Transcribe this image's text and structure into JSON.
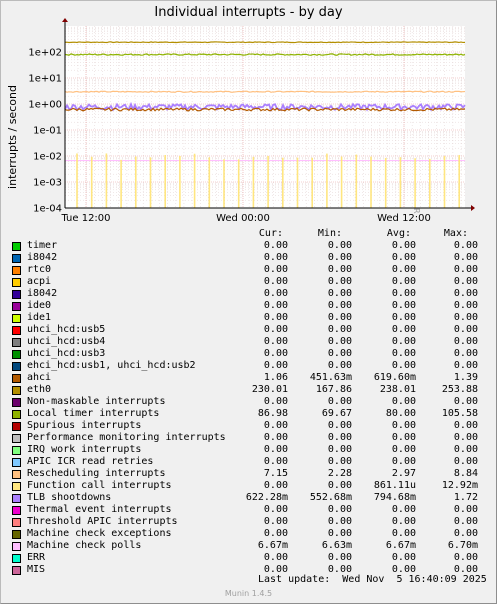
{
  "title": "Individual interrupts - by day",
  "watermark": "RRDTOOL / TOBI OETIKER",
  "footer": {
    "last_update": "Last update:  Wed Nov  5 16:40:09 2025",
    "version": "Munin 1.4.5"
  },
  "legend_headers": {
    "cur": "Cur:",
    "min": "Min:",
    "avg": "Avg:",
    "max": "Max:"
  },
  "legend": [
    {
      "name": "timer",
      "color": "#00cc00",
      "cur": "0.00",
      "min": "0.00",
      "avg": "0.00",
      "max": "0.00"
    },
    {
      "name": "i8042",
      "color": "#0066b3",
      "cur": "0.00",
      "min": "0.00",
      "avg": "0.00",
      "max": "0.00"
    },
    {
      "name": "rtc0",
      "color": "#ff8000",
      "cur": "0.00",
      "min": "0.00",
      "avg": "0.00",
      "max": "0.00"
    },
    {
      "name": "acpi",
      "color": "#ffcc00",
      "cur": "0.00",
      "min": "0.00",
      "avg": "0.00",
      "max": "0.00"
    },
    {
      "name": "i8042",
      "color": "#330099",
      "cur": "0.00",
      "min": "0.00",
      "avg": "0.00",
      "max": "0.00"
    },
    {
      "name": "ide0",
      "color": "#990099",
      "cur": "0.00",
      "min": "0.00",
      "avg": "0.00",
      "max": "0.00"
    },
    {
      "name": "ide1",
      "color": "#ccff00",
      "cur": "0.00",
      "min": "0.00",
      "avg": "0.00",
      "max": "0.00"
    },
    {
      "name": "uhci_hcd:usb5",
      "color": "#ff0000",
      "cur": "0.00",
      "min": "0.00",
      "avg": "0.00",
      "max": "0.00"
    },
    {
      "name": "uhci_hcd:usb4",
      "color": "#808080",
      "cur": "0.00",
      "min": "0.00",
      "avg": "0.00",
      "max": "0.00"
    },
    {
      "name": "uhci_hcd:usb3",
      "color": "#008f00",
      "cur": "0.00",
      "min": "0.00",
      "avg": "0.00",
      "max": "0.00"
    },
    {
      "name": "ehci_hcd:usb1, uhci_hcd:usb2",
      "color": "#00487d",
      "cur": "0.00",
      "min": "0.00",
      "avg": "0.00",
      "max": "0.00"
    },
    {
      "name": "ahci",
      "color": "#b35a00",
      "cur": "1.06",
      "min": "451.63m",
      "avg": "619.60m",
      "max": "1.39"
    },
    {
      "name": "eth0",
      "color": "#b38f00",
      "cur": "230.01",
      "min": "167.86",
      "avg": "238.01",
      "max": "253.88"
    },
    {
      "name": "Non-maskable interrupts",
      "color": "#6b006b",
      "cur": "0.00",
      "min": "0.00",
      "avg": "0.00",
      "max": "0.00"
    },
    {
      "name": "Local timer interrupts",
      "color": "#8fb300",
      "cur": "86.98",
      "min": "69.67",
      "avg": "80.00",
      "max": "105.58"
    },
    {
      "name": "Spurious interrupts",
      "color": "#b30000",
      "cur": "0.00",
      "min": "0.00",
      "avg": "0.00",
      "max": "0.00"
    },
    {
      "name": "Performance monitoring interrupts",
      "color": "#bebebe",
      "cur": "0.00",
      "min": "0.00",
      "avg": "0.00",
      "max": "0.00"
    },
    {
      "name": "IRQ work interrupts",
      "color": "#80ff80",
      "cur": "0.00",
      "min": "0.00",
      "avg": "0.00",
      "max": "0.00"
    },
    {
      "name": "APIC ICR read retries",
      "color": "#80c9ff",
      "cur": "0.00",
      "min": "0.00",
      "avg": "0.00",
      "max": "0.00"
    },
    {
      "name": "Rescheduling interrupts",
      "color": "#ffc080",
      "cur": "7.15",
      "min": "2.28",
      "avg": "2.97",
      "max": "8.84"
    },
    {
      "name": "Function call interrupts",
      "color": "#ffe680",
      "cur": "0.00",
      "min": "0.00",
      "avg": "861.11u",
      "max": "12.92m"
    },
    {
      "name": "TLB shootdowns",
      "color": "#aa80ff",
      "cur": "622.28m",
      "min": "552.68m",
      "avg": "794.68m",
      "max": "1.72"
    },
    {
      "name": "Thermal event interrupts",
      "color": "#ee00cc",
      "cur": "0.00",
      "min": "0.00",
      "avg": "0.00",
      "max": "0.00"
    },
    {
      "name": "Threshold APIC interrupts",
      "color": "#ff8080",
      "cur": "0.00",
      "min": "0.00",
      "avg": "0.00",
      "max": "0.00"
    },
    {
      "name": "Machine check exceptions",
      "color": "#666600",
      "cur": "0.00",
      "min": "0.00",
      "avg": "0.00",
      "max": "0.00"
    },
    {
      "name": "Machine check polls",
      "color": "#ffbfff",
      "cur": "6.67m",
      "min": "6.63m",
      "avg": "6.67m",
      "max": "6.70m"
    },
    {
      "name": "ERR",
      "color": "#00ffcc",
      "cur": "0.00",
      "min": "0.00",
      "avg": "0.00",
      "max": "0.00"
    },
    {
      "name": "MIS",
      "color": "#cc6699",
      "cur": "0.00",
      "min": "0.00",
      "avg": "0.00",
      "max": "0.00"
    }
  ],
  "chart_data": {
    "type": "line",
    "title": "Individual interrupts - by day",
    "ylabel": "interrupts / second",
    "xlabel": "",
    "y_scale": "log",
    "ylim": [
      0.0001,
      1000
    ],
    "y_ticks": [
      "1e-04",
      "1e-03",
      "1e-02",
      "1e-01",
      "1e+00",
      "1e+01",
      "1e+02"
    ],
    "x_ticks": [
      "Tue 12:00",
      "Wed 00:00",
      "Wed 12:00"
    ],
    "grid": true,
    "series": [
      {
        "name": "eth0",
        "color": "#b38f00",
        "level": 238,
        "jitter": 0.03,
        "style": "line"
      },
      {
        "name": "Local timer interrupts",
        "color": "#8fb300",
        "level": 80,
        "jitter": 0.06,
        "style": "line"
      },
      {
        "name": "Rescheduling interrupts",
        "color": "#ffc080",
        "level": 2.97,
        "jitter": 0.05,
        "style": "line"
      },
      {
        "name": "TLB shootdowns",
        "color": "#aa80ff",
        "level": 0.79,
        "jitter": 0.25,
        "style": "line"
      },
      {
        "name": "ahci",
        "color": "#b35a00",
        "level": 0.62,
        "jitter": 0.12,
        "style": "line"
      },
      {
        "name": "Machine check polls",
        "color": "#ffbfff",
        "level": 0.00667,
        "jitter": 0.0,
        "style": "line"
      },
      {
        "name": "Function call interrupts",
        "color": "#ffe680",
        "level": 0.00086,
        "max": 0.01292,
        "style": "spikes"
      }
    ]
  }
}
